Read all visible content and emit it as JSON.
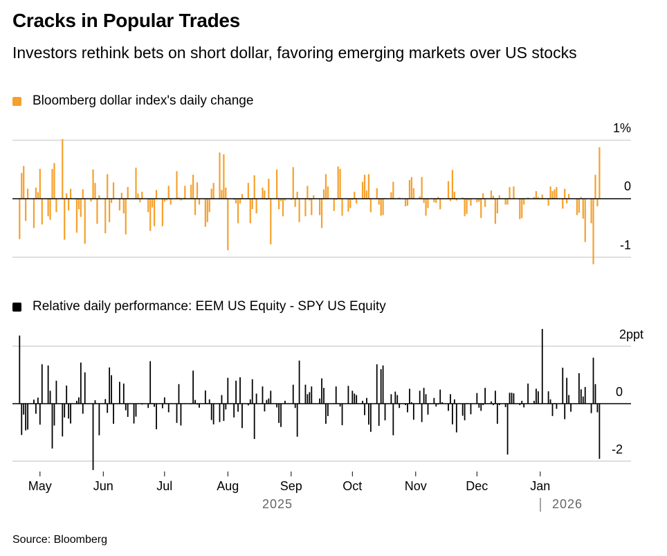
{
  "header": {
    "title": "Cracks in Popular Trades",
    "subtitle": "Investors rethink bets on short dollar, favoring emerging markets over US stocks"
  },
  "footer": {
    "source": "Source: Bloomberg"
  },
  "colors": {
    "dollar": "#f5a02c",
    "equity": "#000000",
    "grid": "#d4d4d4"
  },
  "chart_data": [
    {
      "type": "bar",
      "legend": "Bloomberg dollar index's daily change",
      "yticks": [
        {
          "value": 1,
          "label": "1%"
        },
        {
          "value": 0,
          "label": "0"
        },
        {
          "value": -1,
          "label": "-1"
        }
      ],
      "ylim": [
        -1.0,
        1.0
      ],
      "start_date": "2025-04-21",
      "frequency": "weekdays",
      "unit": "%",
      "values": [
        -0.69,
        0.44,
        0.56,
        -0.38,
        0.17,
        -0.5,
        0.19,
        0.11,
        0.51,
        -0.44,
        -0.3,
        -0.36,
        0.51,
        0.61,
        -0.23,
        1.02,
        -0.7,
        0.09,
        -0.2,
        0.17,
        -0.58,
        -0.18,
        -0.31,
        0.16,
        -0.77,
        -0.05,
        0.5,
        0.27,
        -0.43,
        0.06,
        -0.59,
        0.42,
        -0.4,
        -0.07,
        0.28,
        -0.2,
        0.1,
        -0.25,
        -0.61,
        0.2,
        0,
        0.53,
        0.09,
        -0.06,
        0.12,
        -0.23,
        -0.55,
        -0.15,
        -0.47,
        0.15,
        -0.47,
        -0.05,
        -0.03,
        0.22,
        -0.1,
        0.47,
        0.02,
        -0.03,
        0.01,
        0.22,
        0.24,
        0.41,
        -0.28,
        0.28,
        -0.1,
        -0.48,
        -0.4,
        -0.23,
        0.17,
        0.27,
        0.79,
        0.15,
        0.76,
        0.19,
        -0.88,
        -0.02,
        -0.08,
        -0.42,
        -0.08,
        0.08,
        0.27,
        -0.42,
        -0.18,
        0.4,
        -0.25,
        0.19,
        0.14,
        -0.02,
        0.34,
        -0.78,
        0.5,
        -0.18,
        -0.04,
        -0.3,
        -0.03,
        -0.02,
        0.54,
        -0.14,
        0.12,
        -0.4,
        -0.3,
        0.22,
        -0.03,
        -0.28,
        0.06,
        -0.28,
        -0.5,
        0.16,
        0.42,
        0.21,
        -0.21,
        -0.02,
        0.55,
        0.51,
        -0.29,
        -0.22,
        -0.16,
        -0.02,
        0.12,
        -0.08,
        0.29,
        0.41,
        0.14,
        0.42,
        -0.23,
        0.18,
        -0.1,
        -0.29,
        -0.28,
        0.01,
        0.11,
        0.29,
        0,
        0,
        0.02,
        -0.13,
        -0.12,
        0.32,
        0.37,
        0.18,
        0.04,
        0.37,
        -0.07,
        -0.29,
        -0.16,
        -0.06,
        -0.07,
        0.03,
        -0.18,
        0.01,
        0.3,
        -0.04,
        0.49,
        0.12,
        -0.03,
        0.02,
        -0.3,
        -0.26,
        -0.03,
        -0.12,
        -0.06,
        -0.05,
        -0.33,
        0.09,
        -0.14,
        0.14,
        0.05,
        -0.43,
        -0.25,
        0.06,
        -0.1,
        -0.1,
        0.2,
        0,
        0.21,
        -0.35,
        -0.33,
        -0.1,
        0,
        0.02,
        0.03,
        0.13,
        0.03,
        0,
        0.07,
        -0.12,
        0.21,
        0.13,
        0.16,
        0.2,
        -0.17,
        0.17,
        -0.08,
        0.08,
        0,
        -0.28,
        -0.24,
        0.03,
        -0.34,
        -0.74,
        -0.42,
        -1.12,
        0.41,
        -0.13,
        0.88
      ]
    },
    {
      "type": "bar",
      "legend": "Relative daily performance: EEM US Equity - SPY US Equity",
      "yticks": [
        {
          "value": 2,
          "label": "2ppt"
        },
        {
          "value": 0,
          "label": "0"
        },
        {
          "value": -2,
          "label": "-2"
        }
      ],
      "ylim": [
        -2,
        2
      ],
      "start_date": "2025-04-21",
      "frequency": "weekdays",
      "unit": "ppt",
      "values": [
        2.37,
        -1.09,
        -0.38,
        -0.93,
        -0.9,
        0.14,
        -0.35,
        0.21,
        -0.73,
        1.37,
        1.33,
        0.45,
        -1.56,
        -0.76,
        0.8,
        -1.14,
        -0.48,
        0.63,
        -0.52,
        -0.69,
        0.1,
        0.22,
        1.43,
        -0.35,
        1.09,
        null,
        -2.31,
        0.12,
        0,
        -1.1,
        0.16,
        -0.32,
        1.26,
        0.99,
        -0.7,
        0.76,
        0,
        0.7,
        -0.23,
        -0.46,
        -0.69,
        -0.45,
        0,
        0,
        -0.03,
        -0.15,
        1.48,
        0.02,
        -0.11,
        -0.89,
        -0.16,
        0.22,
        0,
        -0.3,
        null,
        -0.67,
        0.68,
        -0.76,
        0,
        0.01,
        -0.02,
        1.15,
        0.13,
        -0.03,
        -0.14,
        0.46,
        0.02,
        0.15,
        -0.57,
        -0.72,
        -0.64,
        0.3,
        -0.6,
        -0.2,
        0.9,
        -0.48,
        0.8,
        -0.28,
        0.92,
        -0.85,
        -0.06,
        0.15,
        0.85,
        -1.23,
        0.35,
        0.6,
        -0.27,
        0.13,
        0.18,
        0.45,
        -0.13,
        -0.67,
        -0.81,
        0,
        0.1,
        null,
        0.66,
        -0.15,
        -1.15,
        1.5,
        0.66,
        0.33,
        0.4,
        0.6,
        0,
        0.18,
        0.88,
        0.55,
        -0.7,
        -0.43,
        0,
        0.6,
        0,
        -0.1,
        -0.75,
        0.62,
        0,
        0.45,
        0.35,
        0.3,
        0.1,
        -0.4,
        0.2,
        -0.73,
        -0.98,
        1.37,
        -0.77,
        1.2,
        1.33,
        -0.58,
        0.33,
        -1.1,
        0.42,
        0.3,
        -0.15,
        -0.05,
        -0.3,
        0.52,
        0.05,
        -0.56,
        0.45,
        -0.64,
        0.55,
        0.33,
        -0.38,
        0.2,
        -0.1,
        -0.03,
        0.49,
        0.05,
        -0.25,
        0.33,
        -0.72,
        0.15,
        -1.0,
        -0.42,
        -0.58,
        0.02,
        null,
        -0.37,
        0.37,
        -0.14,
        -0.25,
        -0.05,
        0.55,
        0.08,
        -0.05,
        0.45,
        -0.7,
        -0.05,
        -0.12,
        -1.77,
        0.38,
        0.38,
        0.36,
        -0.05,
        0.1,
        -0.13,
        null,
        0.7,
        0.1,
        0.52,
        0.43,
        null,
        2.6,
        0.43,
        0.15,
        -0.43,
        0.02,
        -0.18,
        1.25,
        -0.54,
        0.9,
        0.3,
        -0.28,
        null,
        1.06,
        0.5,
        0.25,
        0.58,
        -0.33,
        1.6,
        0.68,
        -0.3,
        -1.92
      ]
    }
  ],
  "xaxis": {
    "months": [
      {
        "label": "May",
        "day": 10
      },
      {
        "label": "Jun",
        "day": 41
      },
      {
        "label": "Jul",
        "day": 71
      },
      {
        "label": "Aug",
        "day": 102
      },
      {
        "label": "Sep",
        "day": 133
      },
      {
        "label": "Oct",
        "day": 163
      },
      {
        "label": "Nov",
        "day": 194
      },
      {
        "label": "Dec",
        "day": 224
      },
      {
        "label": "Jan",
        "day": 255
      }
    ],
    "years": [
      "2025",
      "2026"
    ]
  }
}
